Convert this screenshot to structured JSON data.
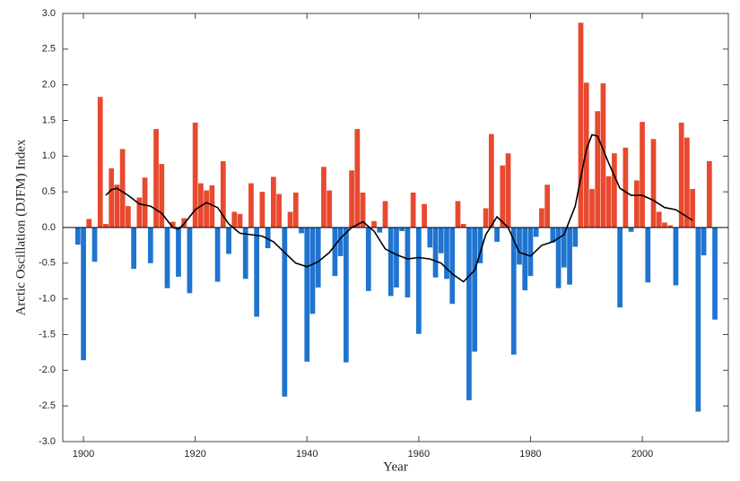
{
  "chart_data": {
    "type": "bar",
    "x_label": "Year",
    "y_label": "Arctic Oscillation (DJFM) Index",
    "x": [
      1899,
      1900,
      1901,
      1902,
      1903,
      1904,
      1905,
      1906,
      1907,
      1908,
      1909,
      1910,
      1911,
      1912,
      1913,
      1914,
      1915,
      1916,
      1917,
      1918,
      1919,
      1920,
      1921,
      1922,
      1923,
      1924,
      1925,
      1926,
      1927,
      1928,
      1929,
      1930,
      1931,
      1932,
      1933,
      1934,
      1935,
      1936,
      1937,
      1938,
      1939,
      1940,
      1941,
      1942,
      1943,
      1944,
      1945,
      1946,
      1947,
      1948,
      1949,
      1950,
      1951,
      1952,
      1953,
      1954,
      1955,
      1956,
      1957,
      1958,
      1959,
      1960,
      1961,
      1962,
      1963,
      1964,
      1965,
      1966,
      1967,
      1968,
      1969,
      1970,
      1971,
      1972,
      1973,
      1974,
      1975,
      1976,
      1977,
      1978,
      1979,
      1980,
      1981,
      1982,
      1983,
      1984,
      1985,
      1986,
      1987,
      1988,
      1989,
      1990,
      1991,
      1992,
      1993,
      1994,
      1995,
      1996,
      1997,
      1998,
      1999,
      2000,
      2001,
      2002,
      2003,
      2004,
      2005,
      2006,
      2007,
      2008,
      2009,
      2010,
      2011,
      2012,
      2013
    ],
    "values": [
      -0.24,
      -1.86,
      0.12,
      -0.48,
      1.83,
      0.05,
      0.83,
      0.6,
      1.1,
      0.3,
      -0.58,
      0.42,
      0.7,
      -0.5,
      1.38,
      0.89,
      -0.85,
      0.08,
      -0.69,
      0.13,
      -0.92,
      1.47,
      0.62,
      0.52,
      0.59,
      -0.76,
      0.93,
      -0.37,
      0.22,
      0.19,
      -0.72,
      0.62,
      -1.25,
      0.5,
      -0.29,
      0.71,
      0.47,
      -2.37,
      0.22,
      0.49,
      -0.08,
      -1.88,
      -1.21,
      -0.84,
      0.85,
      0.52,
      -0.68,
      -0.4,
      -1.89,
      0.8,
      1.38,
      0.49,
      -0.89,
      0.09,
      -0.07,
      0.37,
      -0.96,
      -0.84,
      -0.05,
      -0.98,
      0.49,
      -1.49,
      0.33,
      -0.28,
      -0.7,
      -0.36,
      -0.72,
      -1.07,
      0.37,
      0.05,
      -2.42,
      -1.74,
      -0.5,
      0.27,
      1.31,
      -0.2,
      0.87,
      1.04,
      -1.78,
      -0.52,
      -0.88,
      -0.68,
      -0.13,
      0.27,
      0.6,
      -0.21,
      -0.85,
      -0.56,
      -0.8,
      -0.27,
      2.87,
      2.03,
      0.54,
      1.63,
      2.02,
      0.72,
      1.04,
      -1.12,
      1.12,
      -0.06,
      0.66,
      1.48,
      -0.77,
      1.24,
      0.22,
      0.07,
      0.03,
      -0.81,
      1.47,
      1.26,
      0.54,
      -2.58,
      -0.39,
      0.93,
      -1.29
    ],
    "positive_color": "#e8492f",
    "negative_color": "#1f74cf",
    "smooth": {
      "color": "#000000",
      "x": [
        1904,
        1905,
        1906,
        1908,
        1910,
        1912,
        1914,
        1916,
        1917,
        1918,
        1920,
        1922,
        1924,
        1926,
        1928,
        1930,
        1932,
        1934,
        1936,
        1938,
        1940,
        1942,
        1944,
        1946,
        1948,
        1950,
        1952,
        1954,
        1956,
        1958,
        1960,
        1962,
        1964,
        1966,
        1968,
        1970,
        1972,
        1974,
        1976,
        1978,
        1980,
        1982,
        1984,
        1986,
        1988,
        1990,
        1991,
        1992,
        1994,
        1996,
        1998,
        2000,
        2002,
        2004,
        2006,
        2008,
        2009
      ],
      "values": [
        0.45,
        0.53,
        0.55,
        0.45,
        0.33,
        0.3,
        0.2,
        0.0,
        -0.02,
        0.05,
        0.25,
        0.35,
        0.28,
        0.05,
        -0.08,
        -0.1,
        -0.12,
        -0.2,
        -0.35,
        -0.5,
        -0.55,
        -0.48,
        -0.35,
        -0.15,
        0.0,
        0.08,
        -0.05,
        -0.3,
        -0.38,
        -0.44,
        -0.42,
        -0.44,
        -0.5,
        -0.65,
        -0.76,
        -0.6,
        -0.1,
        0.15,
        0.0,
        -0.35,
        -0.4,
        -0.25,
        -0.2,
        -0.1,
        0.3,
        1.1,
        1.3,
        1.28,
        0.9,
        0.55,
        0.45,
        0.45,
        0.38,
        0.28,
        0.25,
        0.15,
        0.1
      ]
    },
    "xlim": [
      1896.3,
      2015.4
    ],
    "xticks": [
      1900,
      1920,
      1940,
      1960,
      1980,
      2000
    ],
    "ylim": [
      -3,
      3
    ],
    "yticks": [
      {
        "value": -3,
        "label": "-3.0"
      },
      {
        "value": -2.5,
        "label": "-2.5"
      },
      {
        "value": -2,
        "label": "-2.0"
      },
      {
        "value": -1.5,
        "label": "-1.5"
      },
      {
        "value": -1,
        "label": "-1.0"
      },
      {
        "value": -0.5,
        "label": "-0.5"
      },
      {
        "value": 0,
        "label": "0.0"
      },
      {
        "value": 0.5,
        "label": "0.5"
      },
      {
        "value": 1,
        "label": "1.0"
      },
      {
        "value": 1.5,
        "label": "1.5"
      },
      {
        "value": 2,
        "label": "2.0"
      },
      {
        "value": 2.5,
        "label": "2.5"
      },
      {
        "value": 3,
        "label": "3.0"
      }
    ]
  }
}
